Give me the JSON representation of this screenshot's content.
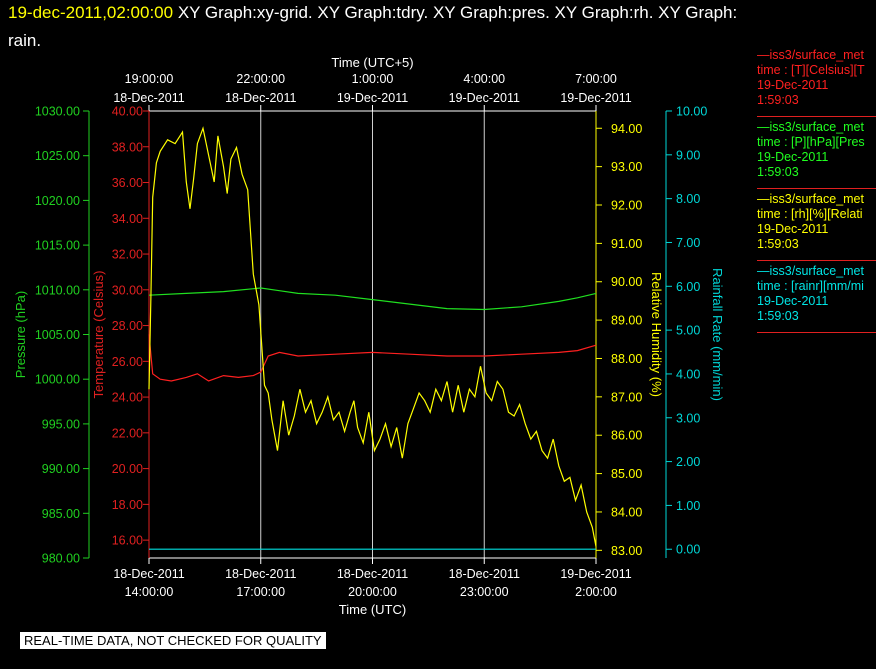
{
  "header": {
    "timestamp": "19-dec-2011,02:00:00",
    "graphs_line1": " XY Graph:xy-grid.  XY Graph:tdry.  XY Graph:pres.  XY Graph:rh.  XY Graph:",
    "graphs_line2": "rain."
  },
  "legend": [
    {
      "title": "—iss3/surface_met",
      "unit": "time : [T][Celsius][T",
      "date": "19-Dec-2011",
      "time": "1:59:03",
      "color": "#ff2020"
    },
    {
      "title": "—iss3/surface_met",
      "unit": "time : [P][hPa][Pres",
      "date": "19-Dec-2011",
      "time": "1:59:03",
      "color": "#20ff20"
    },
    {
      "title": "—iss3/surface_met",
      "unit": "time : [rh][%][Relati",
      "date": "19-Dec-2011",
      "time": "1:59:03",
      "color": "#ffff00"
    },
    {
      "title": "—iss3/surface_met",
      "unit": "time : [rainr][mm/mi",
      "date": "19-Dec-2011",
      "time": "1:59:03",
      "color": "#00e5e5"
    }
  ],
  "disclaimer": "REAL-TIME DATA, NOT CHECKED FOR QUALITY",
  "chart_data": {
    "type": "line",
    "xlim": [
      0,
      12
    ],
    "top_axis": {
      "label": "Time (UTC+5)",
      "ticks": [
        {
          "x": 0,
          "time": "19:00:00",
          "date": "18-Dec-2011"
        },
        {
          "x": 3,
          "time": "22:00:00",
          "date": "18-Dec-2011"
        },
        {
          "x": 6,
          "time": "1:00:00",
          "date": "19-Dec-2011"
        },
        {
          "x": 9,
          "time": "4:00:00",
          "date": "19-Dec-2011"
        },
        {
          "x": 12,
          "time": "7:00:00",
          "date": "19-Dec-2011"
        }
      ]
    },
    "bottom_axis": {
      "label": "Time (UTC)",
      "ticks": [
        {
          "x": 0,
          "date": "18-Dec-2011",
          "time": "14:00:00"
        },
        {
          "x": 3,
          "date": "18-Dec-2011",
          "time": "17:00:00"
        },
        {
          "x": 6,
          "date": "18-Dec-2011",
          "time": "20:00:00"
        },
        {
          "x": 9,
          "date": "18-Dec-2011",
          "time": "23:00:00"
        },
        {
          "x": 12,
          "date": "19-Dec-2011",
          "time": "2:00:00"
        }
      ]
    },
    "axes": {
      "pressure": {
        "label": "Pressure (hPa)",
        "min": 980,
        "max": 1030,
        "ticks": [
          "980.00",
          "985.00",
          "990.00",
          "995.00",
          "1000.00",
          "1005.00",
          "1010.00",
          "1015.00",
          "1020.00",
          "1025.00",
          "1030.00"
        ],
        "color": "#20d020"
      },
      "temperature": {
        "label": "Temperature (Celsius)",
        "min": 15,
        "max": 40,
        "ticks": [
          "16.00",
          "18.00",
          "20.00",
          "22.00",
          "24.00",
          "26.00",
          "28.00",
          "30.00",
          "32.00",
          "34.00",
          "36.00",
          "38.00",
          "40.00"
        ],
        "color": "#e02020"
      },
      "rh": {
        "label": "Relative Humidity (%)",
        "min": 82.8,
        "max": 94.45,
        "ticks": [
          "83.00",
          "84.00",
          "85.00",
          "86.00",
          "87.00",
          "88.00",
          "89.00",
          "90.00",
          "91.00",
          "92.00",
          "93.00",
          "94.00"
        ],
        "color": "#ffff00"
      },
      "rain": {
        "label": "Rainfall Rate (mm/min)",
        "min": -0.2,
        "max": 10,
        "ticks": [
          "0.00",
          "1.00",
          "2.00",
          "3.00",
          "4.00",
          "5.00",
          "6.00",
          "7.00",
          "8.00",
          "9.00",
          "10.00"
        ],
        "color": "#00d8d8"
      }
    },
    "series": [
      {
        "axis": "temperature",
        "color": "#ff2020",
        "x": [
          0,
          0.1,
          0.3,
          0.6,
          1.0,
          1.3,
          1.6,
          2.0,
          2.4,
          2.8,
          3.0,
          3.2,
          3.5,
          4.0,
          5.0,
          6.0,
          7.0,
          8.0,
          9.0,
          10.0,
          11.0,
          11.5,
          12.0
        ],
        "y": [
          27.5,
          25.3,
          25.0,
          24.9,
          25.1,
          25.3,
          24.9,
          25.2,
          25.1,
          25.2,
          25.4,
          26.3,
          26.5,
          26.3,
          26.4,
          26.5,
          26.4,
          26.3,
          26.3,
          26.4,
          26.5,
          26.6,
          26.9
        ]
      },
      {
        "axis": "pressure",
        "color": "#20e020",
        "x": [
          0,
          1,
          2,
          3,
          3.5,
          4,
          5,
          6,
          7,
          8,
          9,
          10,
          11,
          11.5,
          12
        ],
        "y": [
          1009.4,
          1009.6,
          1009.8,
          1010.2,
          1009.9,
          1009.6,
          1009.4,
          1008.9,
          1008.4,
          1007.9,
          1007.8,
          1008.1,
          1008.7,
          1009.1,
          1009.6
        ]
      },
      {
        "axis": "rain",
        "color": "#00e0e0",
        "x": [
          0,
          12
        ],
        "y": [
          0,
          0
        ]
      },
      {
        "axis": "rh",
        "color": "#ffff00",
        "x": [
          0,
          0.05,
          0.1,
          0.2,
          0.3,
          0.5,
          0.7,
          0.9,
          1.0,
          1.1,
          1.2,
          1.3,
          1.45,
          1.6,
          1.75,
          1.85,
          2.0,
          2.1,
          2.2,
          2.35,
          2.5,
          2.65,
          2.8,
          2.95,
          3.1,
          3.2,
          3.3,
          3.45,
          3.6,
          3.75,
          3.9,
          4.05,
          4.2,
          4.35,
          4.5,
          4.65,
          4.8,
          4.95,
          5.1,
          5.25,
          5.4,
          5.5,
          5.6,
          5.75,
          5.9,
          6.05,
          6.2,
          6.35,
          6.5,
          6.65,
          6.8,
          6.95,
          7.1,
          7.25,
          7.4,
          7.55,
          7.7,
          7.85,
          8.0,
          8.15,
          8.3,
          8.45,
          8.6,
          8.75,
          8.9,
          9.05,
          9.2,
          9.35,
          9.5,
          9.65,
          9.8,
          9.95,
          10.1,
          10.25,
          10.4,
          10.55,
          10.7,
          10.85,
          11.0,
          11.15,
          11.3,
          11.45,
          11.6,
          11.75,
          11.9,
          12.0
        ],
        "y": [
          87.2,
          89.6,
          92.2,
          93.1,
          93.4,
          93.7,
          93.6,
          93.9,
          92.6,
          91.9,
          92.7,
          93.6,
          94.0,
          93.3,
          92.6,
          93.8,
          93.0,
          92.3,
          93.2,
          93.5,
          92.8,
          92.4,
          90.2,
          89.4,
          87.3,
          87.1,
          86.4,
          85.6,
          86.9,
          86.0,
          86.5,
          87.2,
          86.6,
          86.9,
          86.3,
          86.6,
          87.0,
          86.4,
          86.6,
          86.1,
          86.6,
          86.9,
          86.2,
          85.8,
          86.6,
          85.6,
          85.9,
          86.3,
          85.7,
          86.2,
          85.4,
          86.3,
          86.7,
          87.1,
          86.9,
          86.6,
          87.2,
          86.9,
          87.4,
          86.6,
          87.3,
          86.6,
          87.2,
          87.0,
          87.8,
          87.1,
          86.9,
          87.4,
          87.2,
          86.6,
          86.5,
          86.8,
          86.3,
          85.9,
          86.1,
          85.6,
          85.4,
          85.9,
          85.2,
          84.8,
          84.9,
          84.3,
          84.7,
          84.0,
          83.6,
          83.1
        ]
      }
    ],
    "vgrid_x": [
      3,
      6,
      9
    ],
    "grid": true
  }
}
